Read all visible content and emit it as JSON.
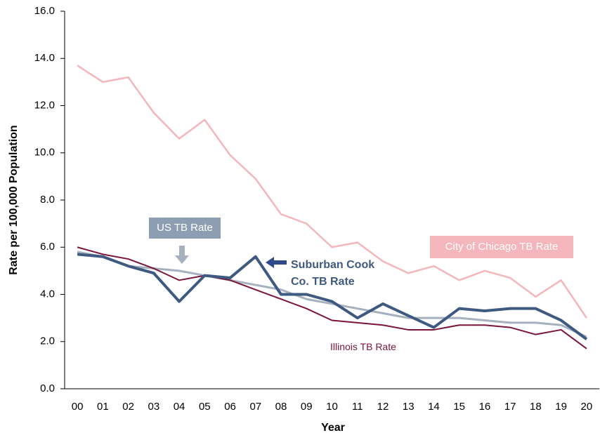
{
  "chart_data": {
    "type": "line",
    "y_label": "Rate per 100,000 Population",
    "x_label": "Year",
    "categories": [
      "00",
      "01",
      "02",
      "03",
      "04",
      "05",
      "06",
      "07",
      "08",
      "09",
      "10",
      "11",
      "12",
      "13",
      "14",
      "15",
      "16",
      "17",
      "18",
      "19",
      "20"
    ],
    "ylim": [
      0,
      16
    ],
    "yticks": [
      {
        "value": 0,
        "label": "0.0"
      },
      {
        "value": 2,
        "label": "2.0"
      },
      {
        "value": 4,
        "label": "4.0"
      },
      {
        "value": 6,
        "label": "6.0"
      },
      {
        "value": 8,
        "label": "8.0"
      },
      {
        "value": 10,
        "label": "10.0"
      },
      {
        "value": 12,
        "label": "12.0"
      },
      {
        "value": 14,
        "label": "14.0"
      },
      {
        "value": 16,
        "label": "16.0"
      }
    ],
    "series": [
      {
        "name": "City of Chicago TB Rate",
        "color": "#f4b6bb",
        "values": [
          13.7,
          13.0,
          13.2,
          11.7,
          10.6,
          11.4,
          9.9,
          8.9,
          7.4,
          7.0,
          6.0,
          6.2,
          5.4,
          4.9,
          5.2,
          4.6,
          5.0,
          4.7,
          3.9,
          4.6,
          3.0
        ]
      },
      {
        "name": "US TB Rate",
        "color": "#a6b1c0",
        "values": [
          5.8,
          5.6,
          5.2,
          5.1,
          5.0,
          4.8,
          4.6,
          4.4,
          4.2,
          3.8,
          3.6,
          3.4,
          3.2,
          3.0,
          3.0,
          3.0,
          2.9,
          2.8,
          2.8,
          2.7,
          2.2
        ]
      },
      {
        "name": "Illinois TB Rate",
        "color": "#7a1538",
        "values": [
          6.0,
          5.7,
          5.5,
          5.1,
          4.6,
          4.8,
          4.6,
          4.2,
          3.8,
          3.4,
          2.9,
          2.8,
          2.7,
          2.5,
          2.5,
          2.7,
          2.7,
          2.6,
          2.3,
          2.5,
          1.7
        ]
      },
      {
        "name": "Suburban Cook Co. TB Rate",
        "color": "#3e5a80",
        "values": [
          5.7,
          5.6,
          5.2,
          4.9,
          3.7,
          4.8,
          4.7,
          5.6,
          4.0,
          4.0,
          3.7,
          3.0,
          3.6,
          3.1,
          2.6,
          3.4,
          3.3,
          3.4,
          3.4,
          2.9,
          2.1
        ]
      }
    ]
  }
}
